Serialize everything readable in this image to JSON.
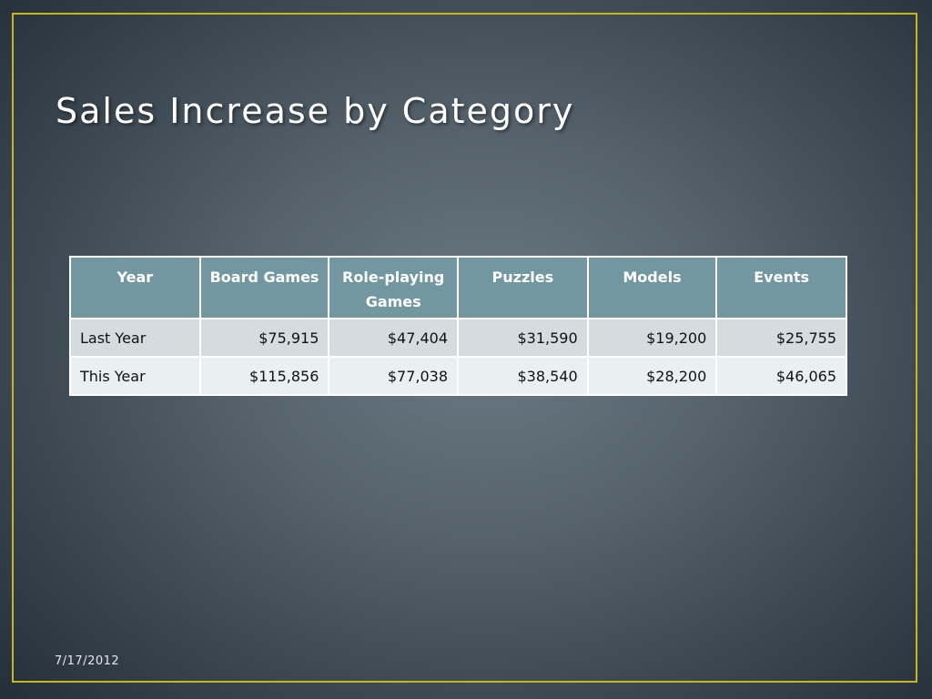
{
  "slide": {
    "title": "Sales Increase by Category",
    "date": "7/17/2012"
  },
  "colors": {
    "frame_border": "#c8b520",
    "header_fill": "#7297a1",
    "row_fill_1": "#d4dce0",
    "row_fill_2": "#eaeff1",
    "background_center": "#6b7a84",
    "background_edge": "#25303a"
  },
  "table": {
    "headers": [
      "Year",
      "Board Games",
      "Role-playing Games",
      "Puzzles",
      "Models",
      "Events"
    ],
    "rows": [
      [
        "Last Year",
        "$75,915",
        "$47,404",
        "$31,590",
        "$19,200",
        "$25,755"
      ],
      [
        "This Year",
        "$115,856",
        "$77,038",
        "$38,540",
        "$28,200",
        "$46,065"
      ]
    ]
  }
}
